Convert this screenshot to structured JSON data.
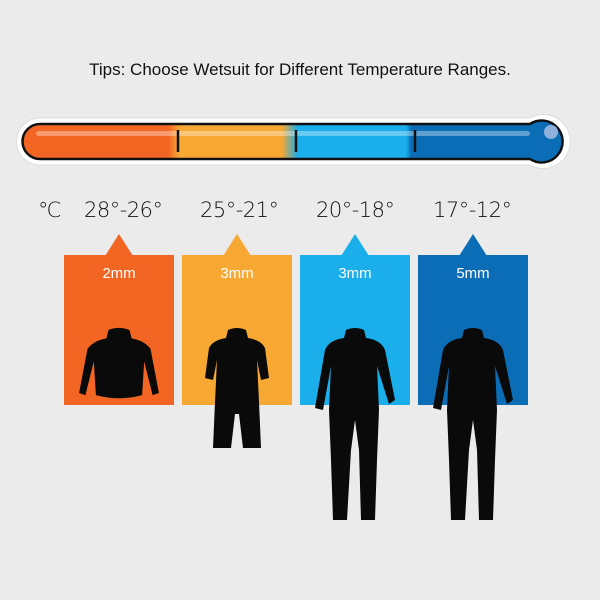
{
  "title": "Tips: Choose Wetsuit for Different Temperature Ranges.",
  "unit": "℃",
  "ranges": [
    {
      "temp": "28°-26°",
      "thickness": "2mm",
      "color": "#f26522",
      "suit": "long-sleeve top"
    },
    {
      "temp": "25°-21°",
      "thickness": "3mm",
      "color": "#f6a833",
      "suit": "shorty"
    },
    {
      "temp": "20°-18°",
      "thickness": "3mm",
      "color": "#1aaeea",
      "suit": "full suit"
    },
    {
      "temp": "17°-12°",
      "thickness": "5mm",
      "color": "#0c6db7",
      "suit": "full suit"
    }
  ]
}
